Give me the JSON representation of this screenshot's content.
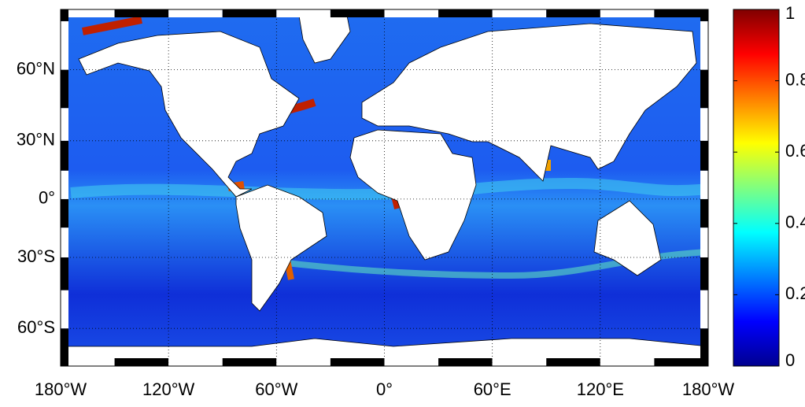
{
  "map": {
    "xlim": [
      -180,
      180
    ],
    "ylim": [
      -72,
      78
    ],
    "projection": "miller",
    "xticks": [
      {
        "value": -180,
        "label": "180°W"
      },
      {
        "value": -120,
        "label": "120°W"
      },
      {
        "value": -60,
        "label": "60°W"
      },
      {
        "value": 0,
        "label": "0°"
      },
      {
        "value": 60,
        "label": "60°E"
      },
      {
        "value": 120,
        "label": "120°E"
      },
      {
        "value": 180,
        "label": "180°W"
      }
    ],
    "yticks": [
      {
        "value": 60,
        "label": "60°N"
      },
      {
        "value": 30,
        "label": "30°N"
      },
      {
        "value": 0,
        "label": "0°"
      },
      {
        "value": -30,
        "label": "30°S"
      },
      {
        "value": -60,
        "label": "60°S"
      }
    ],
    "grid": true,
    "colorbar": {
      "colormap": "jet",
      "lim": [
        0,
        1
      ],
      "ticks": [
        0,
        0.2,
        0.4,
        0.6,
        0.8,
        1
      ]
    }
  }
}
